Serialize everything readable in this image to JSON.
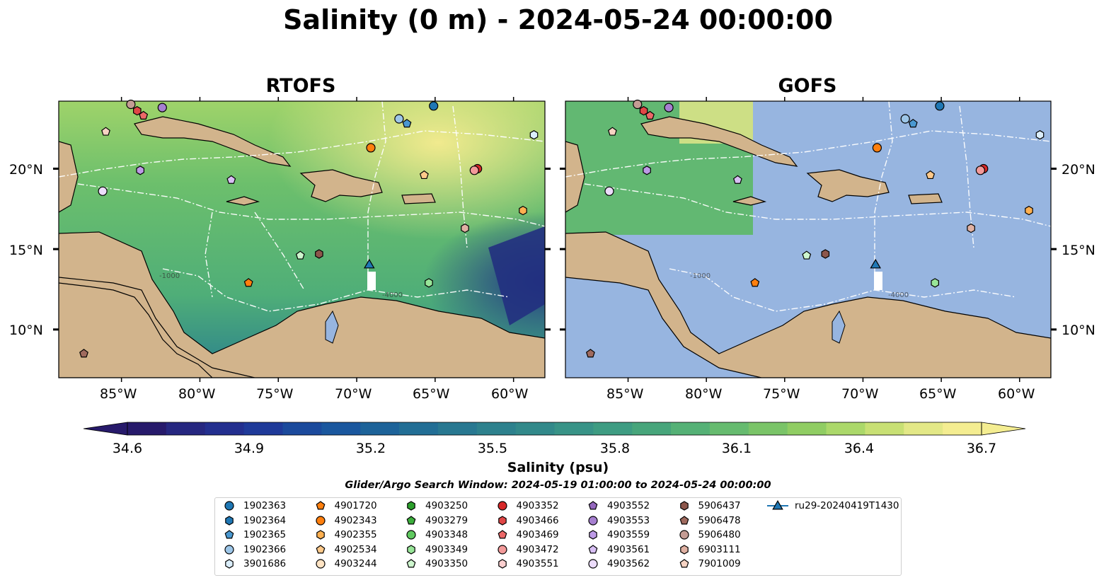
{
  "title": "Salinity (0 m) - 2024-05-24 00:00:00",
  "panels": [
    {
      "title": "RTOFS"
    },
    {
      "title": "GOFS"
    }
  ],
  "axes": {
    "lat_ticks": [
      "20°N",
      "15°N",
      "10°N"
    ],
    "lon_ticks": [
      "85°W",
      "80°W",
      "75°W",
      "70°W",
      "65°W",
      "60°W"
    ]
  },
  "colorbar": {
    "label": "Salinity (psu)",
    "min": 34.6,
    "max": 36.7,
    "ticks": [
      "34.6",
      "34.9",
      "35.2",
      "35.5",
      "35.8",
      "36.1",
      "36.4",
      "36.7"
    ],
    "colors": [
      "#271a6b",
      "#262780",
      "#232f8f",
      "#1f3a99",
      "#1b4a9c",
      "#1a579e",
      "#1d6399",
      "#226e95",
      "#287891",
      "#2d818d",
      "#32898a",
      "#389387",
      "#3e9c82",
      "#47a57b",
      "#55b176",
      "#66bb6f",
      "#7ac468",
      "#90cd63",
      "#abd86a",
      "#c8e074",
      "#e3e887",
      "#f4ed91"
    ],
    "land_color": "#d2b48c",
    "masked_ocean_color": "#97b5e0"
  },
  "search_window": "Glider/Argo Search Window: 2024-05-19 01:00:00 to 2024-05-24 00:00:00",
  "legend": [
    {
      "label": "1902363",
      "color": "#1f77b4",
      "marker": "circle"
    },
    {
      "label": "1902364",
      "color": "#1f77b4",
      "marker": "hexagon"
    },
    {
      "label": "1902365",
      "color": "#4a98d0",
      "marker": "pentagon"
    },
    {
      "label": "1902366",
      "color": "#9dc6e8",
      "marker": "circle"
    },
    {
      "label": "3901686",
      "color": "#dbeefb",
      "marker": "hexagon"
    },
    {
      "label": "4901720",
      "color": "#ff7f0e",
      "marker": "pentagon"
    },
    {
      "label": "4902343",
      "color": "#ff7f0e",
      "marker": "circle"
    },
    {
      "label": "4902355",
      "color": "#ffb050",
      "marker": "hexagon"
    },
    {
      "label": "4902534",
      "color": "#ffc98a",
      "marker": "pentagon"
    },
    {
      "label": "4903244",
      "color": "#ffe4c4",
      "marker": "circle"
    },
    {
      "label": "4903250",
      "color": "#2ca02c",
      "marker": "hexagon"
    },
    {
      "label": "4903279",
      "color": "#3cae3c",
      "marker": "pentagon"
    },
    {
      "label": "4903348",
      "color": "#5fc95f",
      "marker": "circle"
    },
    {
      "label": "4903349",
      "color": "#98e598",
      "marker": "hexagon"
    },
    {
      "label": "4903350",
      "color": "#cef6ce",
      "marker": "pentagon"
    },
    {
      "label": "4903352",
      "color": "#d62728",
      "marker": "circle"
    },
    {
      "label": "4903466",
      "color": "#e04646",
      "marker": "hexagon"
    },
    {
      "label": "4903469",
      "color": "#ec6868",
      "marker": "pentagon"
    },
    {
      "label": "4903472",
      "color": "#f39a9a",
      "marker": "circle"
    },
    {
      "label": "4903551",
      "color": "#fbcfcf",
      "marker": "hexagon"
    },
    {
      "label": "4903552",
      "color": "#9467bd",
      "marker": "pentagon"
    },
    {
      "label": "4903553",
      "color": "#a67fd0",
      "marker": "circle"
    },
    {
      "label": "4903559",
      "color": "#bd9ae6",
      "marker": "hexagon"
    },
    {
      "label": "4903561",
      "color": "#d8bff4",
      "marker": "pentagon"
    },
    {
      "label": "4903562",
      "color": "#ecdcfb",
      "marker": "circle"
    },
    {
      "label": "5906437",
      "color": "#8c564b",
      "marker": "hexagon"
    },
    {
      "label": "5906478",
      "color": "#9f6a5e",
      "marker": "pentagon"
    },
    {
      "label": "5906480",
      "color": "#c49c94",
      "marker": "circle"
    },
    {
      "label": "6903111",
      "color": "#e0b1a3",
      "marker": "hexagon"
    },
    {
      "label": "7901009",
      "color": "#f6d3c3",
      "marker": "pentagon"
    },
    {
      "label": "ru29-20240419T1430",
      "color": "#1f77b4",
      "marker": "triangle-line"
    }
  ],
  "map_markers": [
    {
      "label": "1902363",
      "lon": -65.1,
      "lat": 23.9
    },
    {
      "label": "1902366",
      "lon": -67.3,
      "lat": 23.1
    },
    {
      "label": "1902365",
      "lon": -66.8,
      "lat": 22.8
    },
    {
      "label": "3901686",
      "lon": -58.7,
      "lat": 22.1
    },
    {
      "label": "4902343",
      "lon": -69.1,
      "lat": 21.3
    },
    {
      "label": "4903352",
      "lon": -62.3,
      "lat": 20.0
    },
    {
      "label": "4903472",
      "lon": -62.5,
      "lat": 19.9
    },
    {
      "label": "4902534",
      "lon": -65.7,
      "lat": 19.6
    },
    {
      "label": "4902355",
      "lon": -59.4,
      "lat": 17.4
    },
    {
      "label": "6903111",
      "lon": -63.1,
      "lat": 16.3
    },
    {
      "label": "4903350",
      "lon": -73.6,
      "lat": 14.6
    },
    {
      "label": "5906437",
      "lon": -72.4,
      "lat": 14.7
    },
    {
      "label": "4901720",
      "lon": -76.9,
      "lat": 12.9
    },
    {
      "label": "4903349",
      "lon": -65.4,
      "lat": 12.9
    },
    {
      "label": "4903559",
      "lon": -83.8,
      "lat": 19.9
    },
    {
      "label": "4903561",
      "lon": -78.0,
      "lat": 19.3
    },
    {
      "label": "4903562",
      "lon": -86.2,
      "lat": 18.6
    },
    {
      "label": "7901009",
      "lon": -86.0,
      "lat": 22.3
    },
    {
      "label": "4903553",
      "lon": -82.4,
      "lat": 23.8
    },
    {
      "label": "4903466",
      "lon": -84.0,
      "lat": 23.6
    },
    {
      "label": "4903469",
      "lon": -83.6,
      "lat": 23.3
    },
    {
      "label": "5906480",
      "lon": -84.4,
      "lat": 24.0
    },
    {
      "label": "5906478",
      "lon": -87.4,
      "lat": 8.5
    },
    {
      "label": "ru29-20240419T1430",
      "lon": -69.2,
      "lat": 14.0
    }
  ]
}
